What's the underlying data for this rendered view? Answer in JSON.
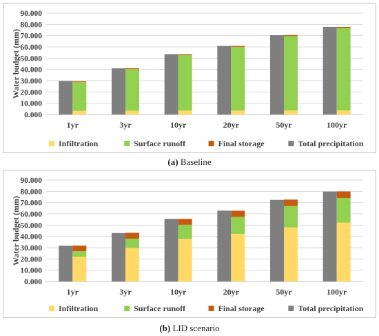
{
  "charts": [
    {
      "caption_label": "(a)",
      "caption_text": "Baseline"
    },
    {
      "caption_label": "(b)",
      "caption_text": "LID scenario"
    }
  ],
  "chart_data": [
    {
      "type": "bar",
      "title": "",
      "ylabel": "Water budget (mm)",
      "xlabel": "",
      "ylim": [
        0,
        90
      ],
      "yticks": [
        "0.000",
        "10.000",
        "20.000",
        "30.000",
        "40.000",
        "50.000",
        "60.000",
        "70.000",
        "80.000",
        "90.000"
      ],
      "categories": [
        "1yr",
        "3yr",
        "10yr",
        "20yr",
        "50yr",
        "100yr"
      ],
      "grid": true,
      "legend_position": "bottom",
      "series": [
        {
          "name": "Infiltration",
          "color": "#FFD966",
          "stack": "components",
          "values": [
            3.2,
            3.4,
            3.5,
            3.5,
            3.6,
            3.6
          ]
        },
        {
          "name": "Surface runoff",
          "color": "#92D050",
          "stack": "components",
          "values": [
            25.5,
            36.9,
            49.3,
            56.6,
            66.0,
            73.2
          ]
        },
        {
          "name": "Final storage",
          "color": "#C55A11",
          "stack": "components",
          "values": [
            0.8,
            0.8,
            0.8,
            0.8,
            0.9,
            1.0
          ]
        },
        {
          "name": "Total precipitation",
          "color": "#7F7F7F",
          "stack": "total",
          "values": [
            29.8,
            41.0,
            53.6,
            60.9,
            70.4,
            77.8
          ]
        }
      ]
    },
    {
      "type": "bar",
      "title": "",
      "ylabel": "Water budget (mm)",
      "xlabel": "",
      "ylim": [
        0,
        90
      ],
      "yticks": [
        "0.000",
        "10.000",
        "20.000",
        "30.000",
        "40.000",
        "50.000",
        "60.000",
        "70.000",
        "80.000",
        "90.000"
      ],
      "categories": [
        "1yr",
        "3yr",
        "10yr",
        "20yr",
        "50yr",
        "100yr"
      ],
      "grid": true,
      "legend_position": "bottom",
      "series": [
        {
          "name": "Infiltration",
          "color": "#FFD966",
          "stack": "components",
          "values": [
            22.0,
            29.8,
            37.9,
            42.3,
            48.0,
            52.3
          ]
        },
        {
          "name": "Surface runoff",
          "color": "#92D050",
          "stack": "components",
          "values": [
            4.8,
            8.2,
            12.4,
            15.0,
            19.0,
            21.8
          ]
        },
        {
          "name": "Final storage",
          "color": "#C55A11",
          "stack": "components",
          "values": [
            5.1,
            5.2,
            5.3,
            5.5,
            5.7,
            5.8
          ]
        },
        {
          "name": "Total precipitation",
          "color": "#7F7F7F",
          "stack": "total",
          "values": [
            31.8,
            43.0,
            55.6,
            62.9,
            72.4,
            79.8
          ]
        }
      ]
    }
  ]
}
